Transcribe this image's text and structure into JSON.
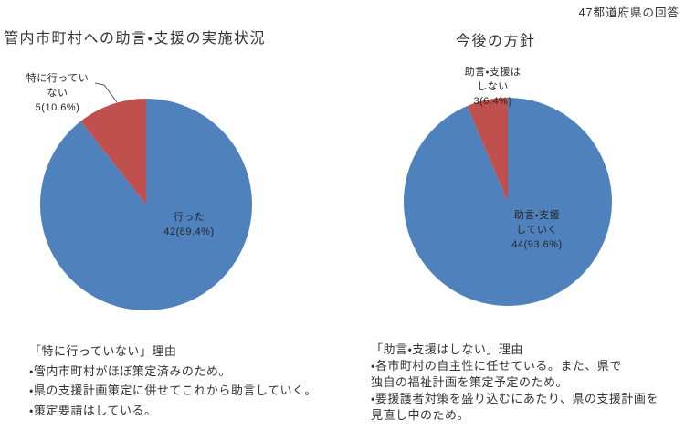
{
  "page": {
    "note": "47都道府県の回答"
  },
  "chart_data": [
    {
      "type": "pie",
      "title": "管内市町村への助言・支援の実施状況",
      "legend": "none",
      "label_format": "category + value(percent)",
      "start_angle": "12-oclock-clockwise",
      "slices": [
        {
          "label": "行った",
          "value": 42,
          "percent": 89.4,
          "value_label": "42(89.4%)",
          "color": "#4F81BD",
          "label_lines": [
            "行った"
          ]
        },
        {
          "label": "特に行っていない",
          "value": 5,
          "percent": 10.6,
          "value_label": "5(10.6%)",
          "color": "#C0504D",
          "label_lines": [
            "特に行ってい",
            "ない"
          ]
        }
      ]
    },
    {
      "type": "pie",
      "title": "今後の方針",
      "legend": "none",
      "label_format": "category + value(percent)",
      "start_angle": "12-oclock-clockwise",
      "slices": [
        {
          "label": "助言・支援していく",
          "value": 44,
          "percent": 93.6,
          "value_label": "44(93.6%)",
          "color": "#4F81BD",
          "label_lines": [
            "助言・支援",
            "していく"
          ]
        },
        {
          "label": "助言・支援はしない",
          "value": 3,
          "percent": 6.4,
          "value_label": "3(6.4%)",
          "color": "#C0504D",
          "label_lines": [
            "助言・支援は",
            "しない"
          ]
        }
      ]
    }
  ],
  "reasons": [
    {
      "heading": "「特に行っていない」理由",
      "lines": [
        "・管内市町村がほぼ策定済みのため。",
        "・県の支援計画策定に併せてこれから助言していく。",
        "・策定要請はしている。"
      ]
    },
    {
      "heading": "「助言・支援はしない」理由",
      "lines": [
        "・各市町村の自主性に任せている。また、県で",
        "独自の福祉計画を策定予定のため。",
        "・要援護者対策を盛り込むにあたり、県の支援計画を",
        "見直し中のため。"
      ]
    }
  ]
}
